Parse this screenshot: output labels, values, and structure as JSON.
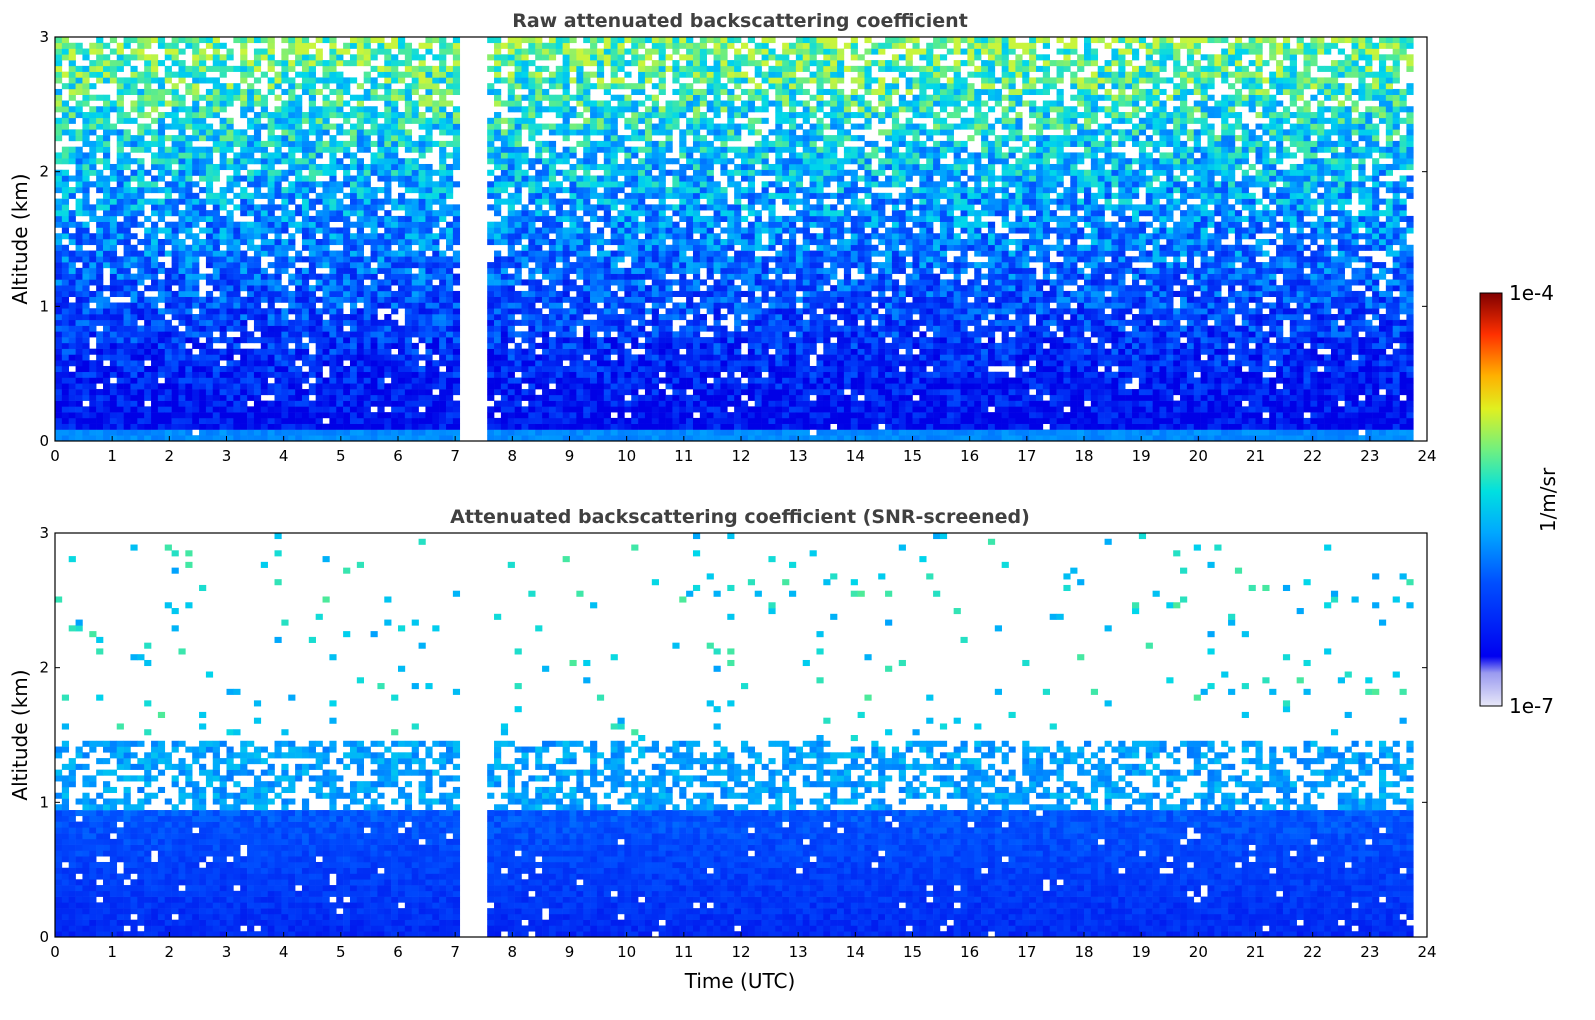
{
  "chart_data": [
    {
      "type": "heatmap",
      "title": "Raw attenuated backscattering coefficient",
      "xlabel": "",
      "ylabel": "Altitude (km)",
      "xlim": [
        0,
        24
      ],
      "ylim": [
        0,
        3
      ],
      "x_ticks": [
        "0",
        "1",
        "2",
        "3",
        "4",
        "5",
        "6",
        "7",
        "8",
        "9",
        "10",
        "11",
        "12",
        "13",
        "14",
        "15",
        "16",
        "17",
        "18",
        "19",
        "20",
        "21",
        "22",
        "23",
        "24"
      ],
      "y_ticks": [
        "0",
        "1",
        "2",
        "3"
      ],
      "data_gaps_utc": [
        [
          7.07,
          7.6
        ],
        [
          17.75,
          17.8
        ],
        [
          23.8,
          24
        ]
      ],
      "description_values": {
        "near_surface_log10_backscatter": -6.0,
        "at_1km_log10_backscatter": -5.8,
        "at_3km_log10_backscatter": -5.3
      }
    },
    {
      "type": "heatmap",
      "title": "Attenuated backscattering coefficient (SNR-screened)",
      "xlabel": "Time (UTC)",
      "ylabel": "Altitude (km)",
      "xlim": [
        0,
        24
      ],
      "ylim": [
        0,
        3
      ],
      "x_ticks": [
        "0",
        "1",
        "2",
        "3",
        "4",
        "5",
        "6",
        "7",
        "8",
        "9",
        "10",
        "11",
        "12",
        "13",
        "14",
        "15",
        "16",
        "17",
        "18",
        "19",
        "20",
        "21",
        "22",
        "23",
        "24"
      ],
      "y_ticks": [
        "0",
        "1",
        "2",
        "3"
      ],
      "data_gaps_utc": [
        [
          7.07,
          7.6
        ],
        [
          17.75,
          17.8
        ],
        [
          23.8,
          24
        ]
      ],
      "boundary_layer_top_km": 1.1
    }
  ],
  "colorbar": {
    "label": "1/m/sr",
    "max_label": "1e-4",
    "min_label": "1e-7",
    "scale": "log",
    "colormap": "jet-like with light blue low end"
  }
}
